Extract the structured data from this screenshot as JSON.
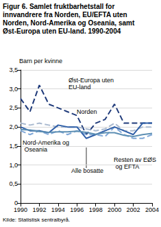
{
  "chart_data": {
    "type": "line",
    "title": "Figur 6. Samlet fruktbarhetstall for innvandrere fra Norden, EU/EFTA uten Norden, Nord-Amerika og Oseania, samt Øst-Europa uten EU-land. 1990-2004",
    "y_label": "Barn per kvinne",
    "source": "Kilde: Statistisk sentralbyrå.",
    "x": [
      1990,
      1991,
      1992,
      1993,
      1994,
      1995,
      1996,
      1997,
      1998,
      1999,
      2000,
      2001,
      2002,
      2003,
      2004
    ],
    "xlim": [
      1990,
      2004
    ],
    "xticks": [
      1990,
      1992,
      1994,
      1996,
      1998,
      2000,
      2002,
      2004
    ],
    "ylim": [
      0,
      3.5
    ],
    "yticks": [
      0,
      {
        "value": 0.5,
        "label": "0,5"
      },
      {
        "value": 1,
        "label": "1,0"
      },
      {
        "value": 1.5,
        "label": "1,5"
      },
      {
        "value": 2,
        "label": "2,0"
      },
      {
        "value": 2.5,
        "label": "2,5"
      },
      {
        "value": 3,
        "label": "3,0"
      },
      {
        "value": 3.5,
        "label": "3,5"
      }
    ],
    "grid": true,
    "series": [
      {
        "name": "Øst-Europa uten EU-land",
        "color": "#1f3a7a",
        "line_style": "dashed",
        "values": [
          2.75,
          2.4,
          3.1,
          2.6,
          2.5,
          2.4,
          2.3,
          1.8,
          2.1,
          2.2,
          2.6,
          2.1,
          2.1,
          2.1,
          2.1
        ]
      },
      {
        "name": "Norden",
        "color": "#a9b9cf",
        "line_style": "dashed",
        "values": [
          2.1,
          2.05,
          2.1,
          2.05,
          2.0,
          2.0,
          2.0,
          1.95,
          1.9,
          1.95,
          2.1,
          1.9,
          1.9,
          2.0,
          2.0
        ]
      },
      {
        "name": "Nord-Amerika og Oseania",
        "color": "#2f5fa8",
        "line_style": "solid",
        "values": [
          2.0,
          1.9,
          1.9,
          1.85,
          2.05,
          2.0,
          2.0,
          1.7,
          1.8,
          1.9,
          2.0,
          1.9,
          1.8,
          2.1,
          2.1
        ]
      },
      {
        "name": "Alle bosatte",
        "color": "#5d8fb3",
        "line_style": "solid",
        "values": [
          1.93,
          1.92,
          1.88,
          1.86,
          1.87,
          1.87,
          1.89,
          1.86,
          1.81,
          1.85,
          1.85,
          1.78,
          1.75,
          1.8,
          1.83
        ]
      },
      {
        "name": "Resten av EØS og EFTA",
        "color": "#80a8d8",
        "line_style": "dashed",
        "values": [
          1.9,
          1.8,
          1.9,
          1.8,
          1.9,
          1.8,
          1.9,
          1.8,
          1.8,
          1.75,
          2.0,
          1.8,
          1.7,
          1.7,
          1.8
        ]
      }
    ]
  }
}
